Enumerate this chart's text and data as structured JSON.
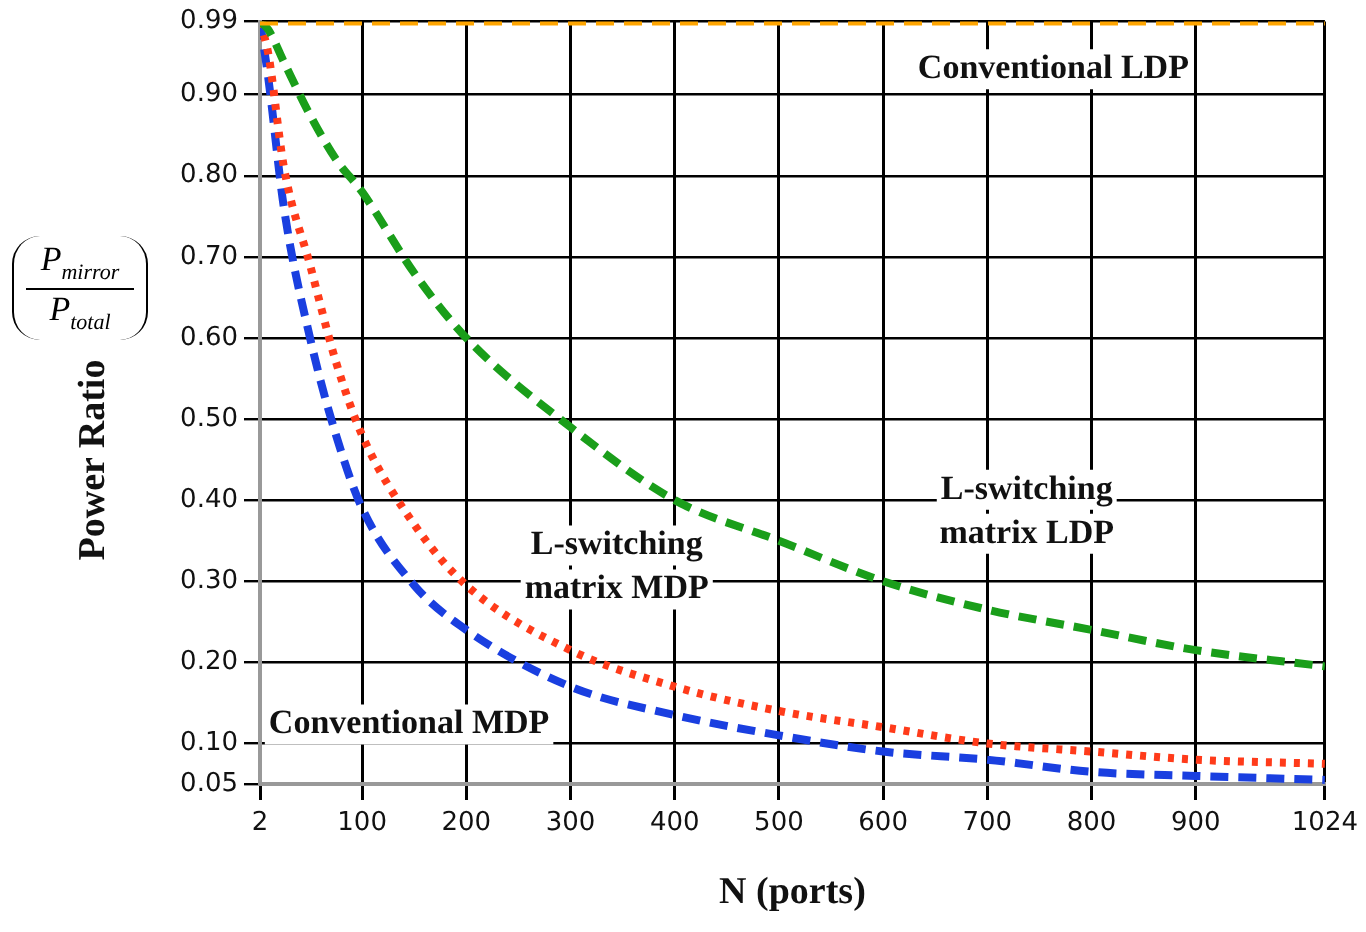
{
  "chart_data": {
    "type": "line",
    "xlabel": "N (ports)",
    "ylabel": "Power Ratio",
    "x": [
      2,
      10,
      25,
      50,
      75,
      100,
      150,
      200,
      300,
      400,
      500,
      600,
      700,
      800,
      900,
      1024
    ],
    "series": [
      {
        "name": "Conventional LDP",
        "color": "#ffa500",
        "line_style": "dashed",
        "values": [
          0.99,
          0.99,
          0.99,
          0.99,
          0.99,
          0.99,
          0.99,
          0.99,
          0.99,
          0.99,
          0.99,
          0.99,
          0.99,
          0.99,
          0.99,
          0.99
        ]
      },
      {
        "name": "L-switching matrix LDP",
        "color": "#1a9e1a",
        "line_style": "dashed",
        "values": [
          0.99,
          0.98,
          0.94,
          0.875,
          0.82,
          0.78,
          0.68,
          0.6,
          0.49,
          0.4,
          0.35,
          0.3,
          0.265,
          0.24,
          0.215,
          0.195
        ]
      },
      {
        "name": "L-switching matrix MDP",
        "color": "#ff3b1a",
        "line_style": "dotted",
        "values": [
          0.99,
          0.95,
          0.81,
          0.69,
          0.57,
          0.48,
          0.37,
          0.295,
          0.215,
          0.17,
          0.14,
          0.12,
          0.1,
          0.09,
          0.08,
          0.075
        ]
      },
      {
        "name": "Conventional MDP",
        "color": "#1a3fe0",
        "line_style": "dashed",
        "values": [
          0.99,
          0.92,
          0.76,
          0.6,
          0.48,
          0.39,
          0.295,
          0.24,
          0.17,
          0.135,
          0.11,
          0.09,
          0.08,
          0.065,
          0.06,
          0.055
        ]
      }
    ],
    "xlim": [
      2,
      1024
    ],
    "xticks": [
      2,
      100,
      200,
      300,
      400,
      500,
      600,
      700,
      800,
      900,
      1024
    ],
    "ylim": [
      0.05,
      0.99
    ],
    "yticks": [
      0.05,
      {
        "value": 0.1,
        "label": "0.10"
      },
      {
        "value": 0.2,
        "label": "0.20"
      },
      {
        "value": 0.3,
        "label": "0.30"
      },
      {
        "value": 0.4,
        "label": "0.40"
      },
      {
        "value": 0.5,
        "label": "0.50"
      },
      {
        "value": 0.6,
        "label": "0.60"
      },
      {
        "value": 0.7,
        "label": "0.70"
      },
      {
        "value": 0.8,
        "label": "0.80"
      },
      {
        "value": 0.9,
        "label": "0.90"
      },
      0.99
    ],
    "grid": true,
    "legend": false,
    "marker": "none",
    "annotations": [
      "P$_{mirror}$",
      "P$_{total}$"
    ]
  }
}
